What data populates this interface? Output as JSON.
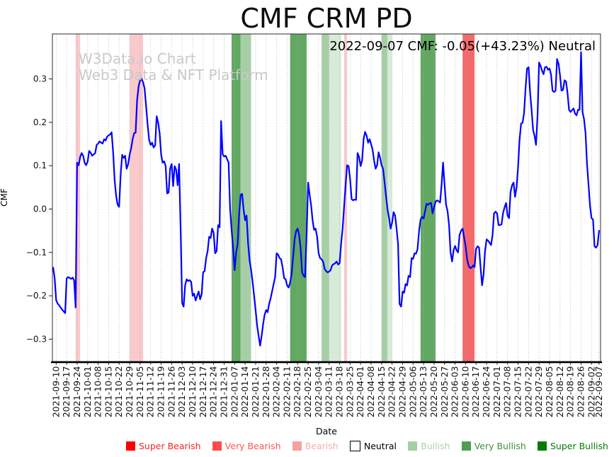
{
  "title": "CMF CRM PD",
  "annotation": "2022-09-07 CMF: -0.05(+43.23%) Neutral",
  "watermark": {
    "line1": "W3Data.io Chart",
    "line2": "Web3 Data & NFT Platform"
  },
  "axes": {
    "x_label": "Date",
    "y_label": "CMF",
    "y_tick_labels": [
      "0.3",
      "0.2",
      "0.1",
      "0.0",
      "−0.1",
      "−0.2",
      "−0.3"
    ],
    "y_tick_values": [
      0.3,
      0.2,
      0.1,
      0.0,
      -0.1,
      -0.2,
      -0.3
    ]
  },
  "legend": {
    "items": [
      {
        "label": "Super Bearish",
        "swatch": "#fe0000",
        "text_color": "#fe2222",
        "border": "none"
      },
      {
        "label": "Very Bearish",
        "swatch": "#fd4b4b",
        "text_color": "#fd5656",
        "border": "none"
      },
      {
        "label": "Bearish",
        "swatch": "#f89f9f",
        "text_color": "#f9abab",
        "border": "none"
      },
      {
        "label": "Neutral",
        "swatch": "#ffffff",
        "text_color": "#000000",
        "border": "#000000"
      },
      {
        "label": "Bullish",
        "swatch": "#a4cfa4",
        "text_color": "#abd0ab",
        "border": "none"
      },
      {
        "label": "Very Bullish",
        "swatch": "#4f9e4f",
        "text_color": "#3f8f3f",
        "border": "none"
      },
      {
        "label": "Super Bullish",
        "swatch": "#067c06",
        "text_color": "#077c07",
        "border": "none"
      }
    ]
  },
  "chart_data": {
    "type": "line",
    "title": "CMF CRM PD",
    "xlabel": "Date",
    "ylabel": "CMF",
    "ylim": [
      -0.352,
      0.404
    ],
    "grid": "vertical-dotted",
    "grid_color": "#b0b0b0",
    "line_color": "#0000ff",
    "x_tick_labels": [
      "2021-09-10",
      "2021-09-17",
      "2021-09-24",
      "2021-10-01",
      "2021-10-08",
      "2021-10-15",
      "2021-10-22",
      "2021-10-29",
      "2021-11-05",
      "2021-11-12",
      "2021-11-19",
      "2021-11-26",
      "2021-12-03",
      "2021-12-10",
      "2021-12-17",
      "2021-12-24",
      "2021-12-31",
      "2022-01-07",
      "2022-01-14",
      "2022-01-21",
      "2022-01-28",
      "2022-02-04",
      "2022-02-11",
      "2022-02-18",
      "2022-02-25",
      "2022-03-04",
      "2022-03-11",
      "2022-03-18",
      "2022-03-25",
      "2022-04-01",
      "2022-04-08",
      "2022-04-15",
      "2022-04-22",
      "2022-04-29",
      "2022-05-06",
      "2022-05-13",
      "2022-05-20",
      "2022-05-27",
      "2022-06-03",
      "2022-06-10",
      "2022-06-17",
      "2022-06-24",
      "2022-07-01",
      "2022-07-08",
      "2022-07-15",
      "2022-07-22",
      "2022-07-29",
      "2022-08-05",
      "2022-08-12",
      "2022-08-19",
      "2022-08-26",
      "2022-09-02",
      "2022-09-07"
    ],
    "series": [
      {
        "name": "CMF",
        "start_date": "2021-09-08",
        "frequency": "daily",
        "values": [
          -0.135,
          -0.16,
          -0.21,
          -0.218,
          -0.222,
          -0.227,
          -0.232,
          -0.236,
          -0.24,
          -0.16,
          -0.157,
          -0.159,
          -0.161,
          -0.158,
          -0.165,
          -0.227,
          0.107,
          0.101,
          0.12,
          0.129,
          0.123,
          0.107,
          0.101,
          0.11,
          0.134,
          0.13,
          0.123,
          0.126,
          0.129,
          0.148,
          0.151,
          0.156,
          0.153,
          0.151,
          0.161,
          0.158,
          0.167,
          0.17,
          0.172,
          0.177,
          0.13,
          0.066,
          0.03,
          0.01,
          0.005,
          0.08,
          0.125,
          0.118,
          0.123,
          0.093,
          0.103,
          0.126,
          0.14,
          0.161,
          0.175,
          0.176,
          0.251,
          0.284,
          0.297,
          0.3,
          0.292,
          0.278,
          0.235,
          0.194,
          0.159,
          0.148,
          0.153,
          0.142,
          0.147,
          0.214,
          0.2,
          0.175,
          0.126,
          0.107,
          0.11,
          0.099,
          0.036,
          0.038,
          0.093,
          0.104,
          0.053,
          0.099,
          0.091,
          0.055,
          0.104,
          -0.05,
          -0.217,
          -0.225,
          -0.176,
          -0.162,
          -0.166,
          -0.164,
          -0.168,
          -0.2,
          -0.195,
          -0.211,
          -0.2,
          -0.19,
          -0.208,
          -0.197,
          -0.146,
          -0.143,
          -0.113,
          -0.097,
          -0.064,
          -0.067,
          -0.045,
          -0.054,
          -0.102,
          -0.097,
          -0.037,
          -0.042,
          0.203,
          0.126,
          0.121,
          0.123,
          0.115,
          0.107,
          0.001,
          -0.05,
          -0.09,
          -0.141,
          -0.1,
          -0.081,
          -0.014,
          0.033,
          0.035,
          -0.002,
          -0.026,
          -0.015,
          -0.081,
          -0.119,
          -0.141,
          -0.168,
          -0.2,
          -0.233,
          -0.269,
          -0.293,
          -0.315,
          -0.293,
          -0.266,
          -0.244,
          -0.233,
          -0.238,
          -0.219,
          -0.206,
          -0.19,
          -0.173,
          -0.157,
          -0.102,
          -0.105,
          -0.113,
          -0.116,
          -0.135,
          -0.159,
          -0.162,
          -0.176,
          -0.181,
          -0.17,
          -0.15,
          -0.11,
          -0.07,
          -0.051,
          -0.045,
          -0.06,
          -0.09,
          -0.146,
          -0.154,
          -0.157,
          -0.06,
          0.061,
          0.033,
          0.009,
          -0.026,
          -0.048,
          -0.045,
          -0.064,
          -0.102,
          -0.113,
          -0.116,
          -0.121,
          -0.138,
          -0.143,
          -0.146,
          -0.144,
          -0.141,
          -0.13,
          -0.127,
          -0.125,
          -0.121,
          -0.128,
          -0.125,
          -0.081,
          -0.045,
          0.006,
          0.055,
          0.101,
          0.099,
          0.069,
          0.023,
          0.02,
          0.022,
          0.021,
          0.129,
          0.12,
          0.099,
          0.112,
          0.161,
          0.178,
          0.17,
          0.153,
          0.161,
          0.15,
          0.137,
          0.112,
          0.093,
          0.101,
          0.131,
          0.118,
          0.101,
          0.093,
          0.061,
          0.028,
          -0.002,
          -0.021,
          -0.045,
          -0.032,
          -0.007,
          -0.015,
          -0.045,
          -0.081,
          -0.219,
          -0.225,
          -0.19,
          -0.193,
          -0.173,
          -0.176,
          -0.154,
          -0.157,
          -0.113,
          -0.115,
          -0.102,
          -0.103,
          -0.092,
          -0.05,
          -0.024,
          -0.018,
          -0.022,
          -0.005,
          0.012,
          0.01,
          0.013,
          0.014,
          -0.01,
          0.004,
          0.017,
          0.02,
          0.018,
          0.015,
          0.055,
          0.107,
          0.055,
          0.01,
          -0.005,
          -0.037,
          -0.1,
          -0.121,
          -0.095,
          -0.085,
          -0.095,
          -0.1,
          -0.06,
          -0.05,
          -0.045,
          -0.065,
          -0.085,
          -0.115,
          -0.13,
          -0.136,
          -0.135,
          -0.13,
          -0.134,
          -0.092,
          -0.086,
          -0.089,
          -0.135,
          -0.176,
          -0.151,
          -0.097,
          -0.07,
          -0.073,
          -0.078,
          -0.083,
          -0.06,
          -0.01,
          -0.006,
          -0.01,
          -0.037,
          -0.037,
          -0.035,
          -0.009,
          0.004,
          0.014,
          -0.015,
          -0.021,
          0.039,
          0.055,
          0.061,
          0.028,
          0.05,
          0.096,
          0.159,
          0.197,
          0.199,
          0.221,
          0.278,
          0.324,
          0.327,
          0.27,
          0.229,
          0.183,
          0.169,
          0.148,
          0.218,
          0.338,
          0.33,
          0.319,
          0.311,
          0.327,
          0.328,
          0.321,
          0.324,
          0.31,
          0.273,
          0.27,
          0.273,
          0.346,
          0.335,
          0.308,
          0.273,
          0.275,
          0.297,
          0.294,
          0.267,
          0.229,
          0.224,
          0.228,
          0.232,
          0.22,
          0.216,
          0.229,
          0.229,
          0.362,
          0.224,
          0.207,
          0.175,
          0.104,
          0.055,
          0.006,
          -0.021,
          -0.024,
          -0.086,
          -0.089,
          -0.083,
          -0.05
        ]
      }
    ],
    "signal_bands": [
      {
        "from": "2021-09-23",
        "to": "2021-09-26",
        "level": "bearish"
      },
      {
        "from": "2021-10-29",
        "to": "2021-11-07",
        "level": "bearish"
      },
      {
        "from": "2022-01-05",
        "to": "2022-01-11",
        "level": "very_bullish"
      },
      {
        "from": "2022-01-11",
        "to": "2022-01-18",
        "level": "bullish"
      },
      {
        "from": "2022-02-13",
        "to": "2022-02-24",
        "level": "very_bullish"
      },
      {
        "from": "2022-03-06",
        "to": "2022-03-11",
        "level": "bullish"
      },
      {
        "from": "2022-03-11",
        "to": "2022-03-19",
        "level": "bullish_light"
      },
      {
        "from": "2022-03-21",
        "to": "2022-03-23",
        "level": "bearish"
      },
      {
        "from": "2022-04-15",
        "to": "2022-04-19",
        "level": "bullish"
      },
      {
        "from": "2022-04-19",
        "to": "2022-04-22",
        "level": "bullish_light"
      },
      {
        "from": "2022-05-11",
        "to": "2022-05-21",
        "level": "very_bullish"
      },
      {
        "from": "2022-06-08",
        "to": "2022-06-16",
        "level": "very_bearish"
      }
    ],
    "band_colors": {
      "bearish": "#f9c9cb",
      "very_bearish": "#f4696b",
      "bullish": "#a6cfa6",
      "bullish_light": "#d8ead8",
      "very_bullish": "#62a862"
    }
  }
}
